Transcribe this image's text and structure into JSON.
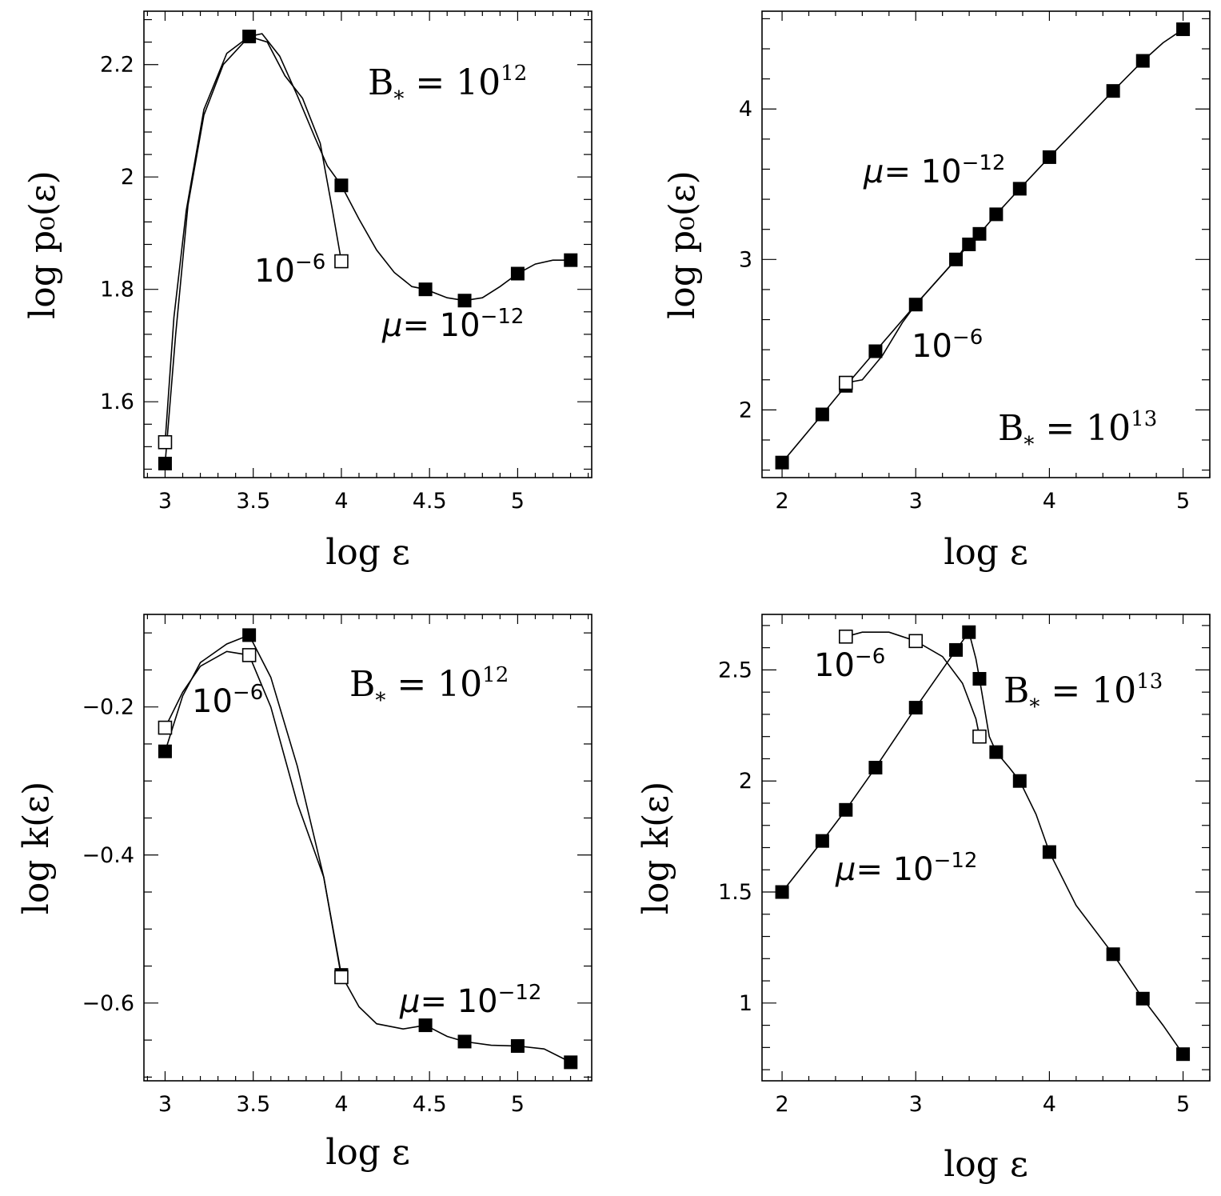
{
  "chart_data": [
    {
      "id": "tl",
      "type": "line",
      "title": "",
      "xlabel": "log ε",
      "ylabel": "log p₀(ε)",
      "xlim": [
        2.88,
        5.42
      ],
      "ylim": [
        1.465,
        2.295
      ],
      "xticks": [
        3,
        3.5,
        4,
        4.5,
        5
      ],
      "xtick_labels": [
        "3",
        "3.5",
        "4",
        "4.5",
        "5"
      ],
      "xminor": 0.1,
      "yticks": [
        1.6,
        1.8,
        2.0,
        2.2
      ],
      "ytick_labels": [
        "1.6",
        "1.8",
        "2",
        "2.2"
      ],
      "yminor": 0.04,
      "series": [
        {
          "name": "μ = 10^-12",
          "marker": "filled-square",
          "markers": [
            [
              3.0,
              1.49
            ],
            [
              3.477,
              2.25
            ],
            [
              4.0,
              1.985
            ],
            [
              4.477,
              1.8
            ],
            [
              4.699,
              1.78
            ],
            [
              5.0,
              1.828
            ],
            [
              5.301,
              1.852
            ]
          ],
          "curve": [
            [
              3.0,
              1.49
            ],
            [
              3.06,
              1.72
            ],
            [
              3.13,
              1.95
            ],
            [
              3.22,
              2.11
            ],
            [
              3.33,
              2.2
            ],
            [
              3.477,
              2.25
            ],
            [
              3.55,
              2.255
            ],
            [
              3.65,
              2.215
            ],
            [
              3.75,
              2.145
            ],
            [
              3.85,
              2.07
            ],
            [
              3.92,
              2.02
            ],
            [
              4.0,
              1.985
            ],
            [
              4.1,
              1.925
            ],
            [
              4.2,
              1.87
            ],
            [
              4.3,
              1.83
            ],
            [
              4.4,
              1.805
            ],
            [
              4.477,
              1.8
            ],
            [
              4.6,
              1.785
            ],
            [
              4.699,
              1.78
            ],
            [
              4.8,
              1.785
            ],
            [
              4.9,
              1.805
            ],
            [
              5.0,
              1.828
            ],
            [
              5.1,
              1.845
            ],
            [
              5.2,
              1.852
            ],
            [
              5.301,
              1.852
            ]
          ]
        },
        {
          "name": "10^-6",
          "marker": "open-square",
          "markers": [
            [
              3.0,
              1.528
            ],
            [
              4.0,
              1.85
            ]
          ],
          "curve": [
            [
              3.0,
              1.528
            ],
            [
              3.05,
              1.75
            ],
            [
              3.12,
              1.94
            ],
            [
              3.22,
              2.12
            ],
            [
              3.35,
              2.22
            ],
            [
              3.477,
              2.25
            ],
            [
              3.58,
              2.24
            ],
            [
              3.68,
              2.18
            ],
            [
              3.78,
              2.14
            ],
            [
              3.88,
              2.06
            ],
            [
              3.95,
              1.94
            ],
            [
              4.0,
              1.85
            ]
          ]
        }
      ],
      "annotations": {
        "b_label": "B",
        "b_sub": "*",
        "b_eq": " =  10",
        "b_exp": "12",
        "mu_prefix": "μ",
        "mu_eq": "=  10",
        "mu_exp": "−12",
        "alt_base": "10",
        "alt_exp": "−6"
      }
    },
    {
      "id": "tr",
      "type": "line",
      "title": "",
      "xlabel": "log ε",
      "ylabel": "log p₀(ε)",
      "xlim": [
        1.85,
        5.2
      ],
      "ylim": [
        1.55,
        4.65
      ],
      "xticks": [
        2,
        3,
        4,
        5
      ],
      "xtick_labels": [
        "2",
        "3",
        "4",
        "5"
      ],
      "xminor": 0.2,
      "yticks": [
        2,
        3,
        4
      ],
      "ytick_labels": [
        "2",
        "3",
        "4"
      ],
      "yminor": 0.2,
      "series": [
        {
          "name": "μ = 10^-12",
          "marker": "filled-square",
          "markers": [
            [
              2.0,
              1.65
            ],
            [
              2.301,
              1.97
            ],
            [
              2.477,
              2.16
            ],
            [
              2.699,
              2.39
            ],
            [
              3.0,
              2.7
            ],
            [
              3.301,
              3.0
            ],
            [
              3.398,
              3.1
            ],
            [
              3.477,
              3.17
            ],
            [
              3.602,
              3.3
            ],
            [
              3.778,
              3.47
            ],
            [
              4.0,
              3.68
            ],
            [
              4.477,
              4.12
            ],
            [
              4.699,
              4.32
            ],
            [
              5.0,
              4.53
            ]
          ],
          "curve": [
            [
              2.0,
              1.65
            ],
            [
              2.301,
              1.97
            ],
            [
              2.477,
              2.16
            ],
            [
              2.699,
              2.39
            ],
            [
              3.0,
              2.7
            ],
            [
              3.301,
              3.0
            ],
            [
              3.398,
              3.1
            ],
            [
              3.477,
              3.17
            ],
            [
              3.602,
              3.3
            ],
            [
              3.778,
              3.47
            ],
            [
              4.0,
              3.68
            ],
            [
              4.477,
              4.12
            ],
            [
              4.699,
              4.32
            ],
            [
              4.85,
              4.44
            ],
            [
              5.0,
              4.53
            ]
          ]
        },
        {
          "name": "10^-6",
          "marker": "open-square",
          "markers": [
            [
              2.477,
              2.18
            ]
          ],
          "curve": [
            [
              2.477,
              2.18
            ],
            [
              2.6,
              2.2
            ],
            [
              2.75,
              2.36
            ],
            [
              2.9,
              2.58
            ],
            [
              3.0,
              2.7
            ],
            [
              3.15,
              2.85
            ],
            [
              3.301,
              3.0
            ],
            [
              3.398,
              3.12
            ],
            [
              3.477,
              3.17
            ]
          ]
        }
      ],
      "annotations": {
        "b_label": "B",
        "b_sub": "*",
        "b_eq": " =  10",
        "b_exp": "13",
        "mu_prefix": "μ",
        "mu_eq": "=  10",
        "mu_exp": "−12",
        "alt_base": "10",
        "alt_exp": "−6"
      }
    },
    {
      "id": "bl",
      "type": "line",
      "title": "",
      "xlabel": "log ε",
      "ylabel": "log k(ε)",
      "xlim": [
        2.88,
        5.42
      ],
      "ylim": [
        -0.705,
        -0.075
      ],
      "xticks": [
        3,
        3.5,
        4,
        4.5,
        5
      ],
      "xtick_labels": [
        "3",
        "3.5",
        "4",
        "4.5",
        "5"
      ],
      "xminor": 0.1,
      "yticks": [
        -0.6,
        -0.4,
        -0.2
      ],
      "ytick_labels": [
        "−0.6",
        "−0.4",
        "−0.2"
      ],
      "yminor": 0.05,
      "series": [
        {
          "name": "μ = 10^-12",
          "marker": "filled-square",
          "markers": [
            [
              3.0,
              -0.26
            ],
            [
              3.477,
              -0.103
            ],
            [
              4.0,
              -0.562
            ],
            [
              4.477,
              -0.63
            ],
            [
              4.699,
              -0.652
            ],
            [
              5.0,
              -0.658
            ],
            [
              5.301,
              -0.68
            ]
          ],
          "curve": [
            [
              3.0,
              -0.26
            ],
            [
              3.1,
              -0.185
            ],
            [
              3.2,
              -0.14
            ],
            [
              3.35,
              -0.115
            ],
            [
              3.477,
              -0.103
            ],
            [
              3.6,
              -0.16
            ],
            [
              3.75,
              -0.28
            ],
            [
              3.9,
              -0.43
            ],
            [
              4.0,
              -0.562
            ],
            [
              4.1,
              -0.605
            ],
            [
              4.2,
              -0.628
            ],
            [
              4.35,
              -0.635
            ],
            [
              4.477,
              -0.63
            ],
            [
              4.6,
              -0.645
            ],
            [
              4.699,
              -0.652
            ],
            [
              4.85,
              -0.657
            ],
            [
              5.0,
              -0.658
            ],
            [
              5.15,
              -0.662
            ],
            [
              5.301,
              -0.68
            ]
          ]
        },
        {
          "name": "10^-6",
          "marker": "open-square",
          "markers": [
            [
              3.0,
              -0.228
            ],
            [
              3.477,
              -0.13
            ],
            [
              4.0,
              -0.565
            ]
          ],
          "curve": [
            [
              3.0,
              -0.228
            ],
            [
              3.1,
              -0.18
            ],
            [
              3.2,
              -0.145
            ],
            [
              3.35,
              -0.125
            ],
            [
              3.477,
              -0.13
            ],
            [
              3.6,
              -0.2
            ],
            [
              3.75,
              -0.33
            ],
            [
              3.9,
              -0.43
            ],
            [
              4.0,
              -0.565
            ]
          ]
        }
      ],
      "annotations": {
        "b_label": "B",
        "b_sub": "*",
        "b_eq": " =  10",
        "b_exp": "12",
        "mu_prefix": "μ",
        "mu_eq": "=  10",
        "mu_exp": "−12",
        "alt_base": "10",
        "alt_exp": "−6"
      }
    },
    {
      "id": "br",
      "type": "line",
      "title": "",
      "xlabel": "log ε",
      "ylabel": "log k(ε)",
      "xlim": [
        1.85,
        5.2
      ],
      "ylim": [
        0.65,
        2.75
      ],
      "xticks": [
        2,
        3,
        4,
        5
      ],
      "xtick_labels": [
        "2",
        "3",
        "4",
        "5"
      ],
      "xminor": 0.2,
      "yticks": [
        1,
        1.5,
        2,
        2.5
      ],
      "ytick_labels": [
        "1",
        "1.5",
        "2",
        "2.5"
      ],
      "yminor": 0.1,
      "series": [
        {
          "name": "μ = 10^-12",
          "marker": "filled-square",
          "markers": [
            [
              2.0,
              1.5
            ],
            [
              2.301,
              1.73
            ],
            [
              2.477,
              1.87
            ],
            [
              2.699,
              2.06
            ],
            [
              3.0,
              2.33
            ],
            [
              3.301,
              2.59
            ],
            [
              3.398,
              2.67
            ],
            [
              3.477,
              2.46
            ],
            [
              3.602,
              2.13
            ],
            [
              3.778,
              2.0
            ],
            [
              4.0,
              1.68
            ],
            [
              4.477,
              1.22
            ],
            [
              4.699,
              1.02
            ],
            [
              5.0,
              0.77
            ]
          ],
          "curve": [
            [
              2.0,
              1.5
            ],
            [
              2.301,
              1.73
            ],
            [
              2.477,
              1.87
            ],
            [
              2.699,
              2.06
            ],
            [
              3.0,
              2.33
            ],
            [
              3.301,
              2.59
            ],
            [
              3.398,
              2.67
            ],
            [
              3.45,
              2.55
            ],
            [
              3.477,
              2.46
            ],
            [
              3.55,
              2.2
            ],
            [
              3.602,
              2.13
            ],
            [
              3.7,
              2.06
            ],
            [
              3.778,
              2.0
            ],
            [
              3.9,
              1.85
            ],
            [
              4.0,
              1.68
            ],
            [
              4.2,
              1.44
            ],
            [
              4.477,
              1.22
            ],
            [
              4.699,
              1.02
            ],
            [
              4.85,
              0.9
            ],
            [
              5.0,
              0.77
            ]
          ]
        },
        {
          "name": "10^-6",
          "marker": "open-square",
          "markers": [
            [
              2.477,
              2.65
            ],
            [
              3.0,
              2.63
            ],
            [
              3.477,
              2.2
            ]
          ],
          "curve": [
            [
              2.477,
              2.65
            ],
            [
              2.6,
              2.67
            ],
            [
              2.8,
              2.67
            ],
            [
              3.0,
              2.63
            ],
            [
              3.2,
              2.56
            ],
            [
              3.35,
              2.44
            ],
            [
              3.45,
              2.28
            ],
            [
              3.477,
              2.2
            ]
          ]
        }
      ],
      "annotations": {
        "b_label": "B",
        "b_sub": "*",
        "b_eq": " =  10",
        "b_exp": "13",
        "mu_prefix": "μ",
        "mu_eq": "=  10",
        "mu_exp": "−12",
        "alt_base": "10",
        "alt_exp": "−6"
      }
    }
  ]
}
